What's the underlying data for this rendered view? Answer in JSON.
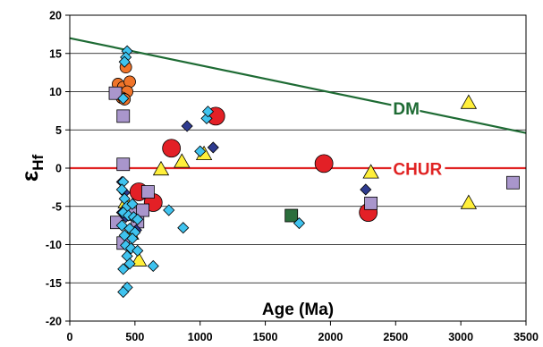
{
  "chart_data": {
    "type": "scatter",
    "xlabel": "Age (Ma)",
    "ylabel": "ε",
    "ylabel_sub": "Hf",
    "xlim": [
      0,
      3500
    ],
    "ylim": [
      -20,
      20
    ],
    "xticks": [
      0,
      500,
      1000,
      1500,
      2000,
      2500,
      3000,
      3500
    ],
    "yticks": [
      -20,
      -15,
      -10,
      -5,
      0,
      5,
      10,
      15,
      20
    ],
    "grid": "horizontal",
    "legend": "none",
    "reference_lines": [
      {
        "name": "DM",
        "x": [
          0,
          3500
        ],
        "y": [
          17.0,
          4.6
        ],
        "color": "#1e6b34",
        "label_x": 2480,
        "label_y": 7.0
      },
      {
        "name": "CHUR",
        "x": [
          0,
          3500
        ],
        "y": [
          0,
          0
        ],
        "color": "#e02323",
        "label_x": 2480,
        "label_y": -0.9
      }
    ],
    "series": [
      {
        "marker": "circle-small",
        "color": "#f0742a",
        "points": [
          [
            430,
            13.2
          ],
          [
            370,
            11.0
          ],
          [
            410,
            10.6
          ],
          [
            460,
            11.3
          ],
          [
            440,
            10.0
          ],
          [
            400,
            9.2
          ],
          [
            420,
            9.0
          ]
        ]
      },
      {
        "marker": "circle-large",
        "color": "#e32026",
        "points": [
          [
            530,
            -3.1
          ],
          [
            640,
            -4.5
          ],
          [
            780,
            2.6
          ],
          [
            1120,
            6.8
          ],
          [
            1950,
            0.6
          ],
          [
            2290,
            -5.8
          ]
        ]
      },
      {
        "marker": "triangle",
        "color": "#ffef3a",
        "points": [
          [
            430,
            -4.5
          ],
          [
            470,
            -8.6
          ],
          [
            530,
            -12.1
          ],
          [
            700,
            -0.2
          ],
          [
            860,
            0.8
          ],
          [
            1030,
            1.8
          ],
          [
            2310,
            -0.6
          ],
          [
            3060,
            8.5
          ],
          [
            3060,
            -4.6
          ]
        ]
      },
      {
        "marker": "square",
        "color": "#a996cc",
        "points": [
          [
            350,
            9.8
          ],
          [
            410,
            6.8
          ],
          [
            410,
            0.5
          ],
          [
            360,
            -7.1
          ],
          [
            410,
            -9.8
          ],
          [
            470,
            -6.0
          ],
          [
            520,
            -7.0
          ],
          [
            560,
            -5.5
          ],
          [
            600,
            -3.1
          ],
          [
            2310,
            -4.6
          ],
          [
            3400,
            -1.9
          ]
        ]
      },
      {
        "marker": "square",
        "color": "#2b6e3c",
        "points": [
          [
            1700,
            -6.2
          ]
        ]
      },
      {
        "marker": "diamond",
        "color": "#2e3b8f",
        "points": [
          [
            400,
            -1.8
          ],
          [
            420,
            -3.2
          ],
          [
            400,
            -5.8
          ],
          [
            430,
            -6.4
          ],
          [
            510,
            -8.1
          ],
          [
            900,
            5.5
          ],
          [
            1100,
            2.7
          ],
          [
            2270,
            -2.8
          ]
        ]
      },
      {
        "marker": "diamond",
        "color": "#3fc3ef",
        "points": [
          [
            440,
            15.3
          ],
          [
            430,
            14.5
          ],
          [
            420,
            13.9
          ],
          [
            410,
            9.1
          ],
          [
            1050,
            6.5
          ],
          [
            1060,
            7.4
          ],
          [
            1000,
            2.2
          ],
          [
            410,
            -1.8
          ],
          [
            400,
            -2.8
          ],
          [
            420,
            -4.0
          ],
          [
            440,
            -5.0
          ],
          [
            480,
            -4.7
          ],
          [
            410,
            -5.8
          ],
          [
            450,
            -6.2
          ],
          [
            490,
            -6.4
          ],
          [
            520,
            -6.7
          ],
          [
            400,
            -7.5
          ],
          [
            460,
            -7.9
          ],
          [
            500,
            -8.4
          ],
          [
            420,
            -8.8
          ],
          [
            480,
            -9.2
          ],
          [
            430,
            -10.1
          ],
          [
            470,
            -10.5
          ],
          [
            520,
            -10.8
          ],
          [
            440,
            -11.5
          ],
          [
            410,
            -13.2
          ],
          [
            460,
            -12.5
          ],
          [
            640,
            -12.8
          ],
          [
            760,
            -5.5
          ],
          [
            870,
            -7.8
          ],
          [
            440,
            -15.6
          ],
          [
            410,
            -16.2
          ],
          [
            1760,
            -7.2
          ]
        ]
      }
    ]
  }
}
